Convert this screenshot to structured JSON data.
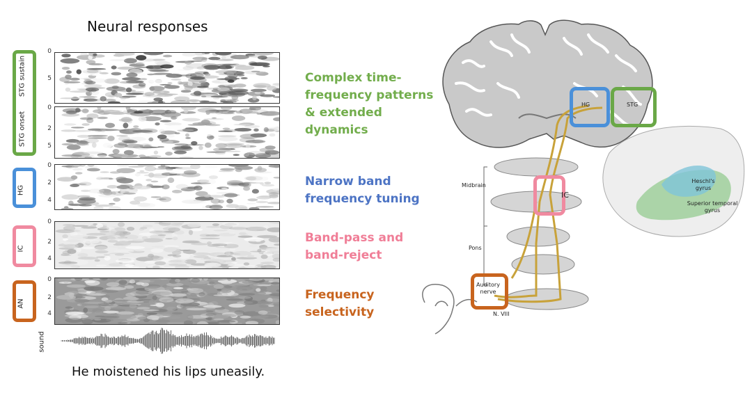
{
  "title": "Neural responses",
  "sentence": "He moistened his lips uneasily.",
  "panels": [
    {
      "label": "STG sustain",
      "ticks": [
        "0",
        "5",
        ""
      ]
    },
    {
      "label": "STG onset",
      "ticks": [
        "0",
        "2",
        "5"
      ]
    },
    {
      "label": "HG",
      "ticks": [
        "0",
        "2",
        "4"
      ]
    },
    {
      "label": "IC",
      "ticks": [
        "0",
        "2",
        "4"
      ]
    },
    {
      "label": "AN",
      "ticks": [
        "0",
        "2",
        "4"
      ]
    }
  ],
  "sound_label": "sound",
  "descriptions": {
    "stg": [
      "Complex time-",
      "frequency patterns",
      "& extended",
      "dynamics"
    ],
    "hg": [
      "Narrow band",
      "frequency tuning"
    ],
    "ic": [
      "Band-pass and",
      "band-reject"
    ],
    "an": [
      "Frequency",
      "selectivity"
    ]
  },
  "anatomy": {
    "hg_box": "HG",
    "stg_box": "STG",
    "ic_label": "IC",
    "midbrain": "Midbrain",
    "pons": "Pons",
    "auditory_nerve": "Auditory nerve",
    "n_viii": "N. VIII",
    "heschls": "Heschl's gyrus",
    "superior": "Superior temporal gyrus"
  },
  "colors": {
    "green": "#6aa847",
    "blue": "#4a90d9",
    "pink": "#f08aa0",
    "orange": "#c8641e",
    "desc_green": "#72ad4c",
    "desc_blue": "#4d74c4",
    "desc_pink": "#f07e97",
    "desc_orange": "#c8641e"
  }
}
